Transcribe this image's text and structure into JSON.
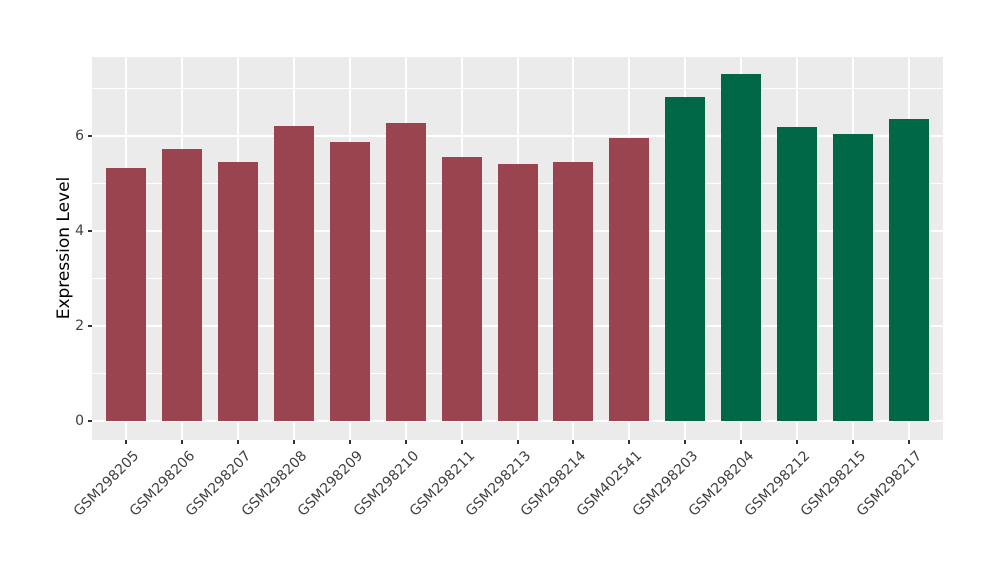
{
  "chart_data": {
    "type": "bar",
    "title": "",
    "xlabel": "",
    "ylabel": "Expression Level",
    "categories": [
      "GSM298205",
      "GSM298206",
      "GSM298207",
      "GSM298208",
      "GSM298209",
      "GSM298210",
      "GSM298211",
      "GSM298213",
      "GSM298214",
      "GSM402541",
      "GSM298203",
      "GSM298204",
      "GSM298212",
      "GSM298215",
      "GSM298217"
    ],
    "values": [
      5.33,
      5.72,
      5.45,
      6.2,
      5.88,
      6.28,
      5.55,
      5.4,
      5.46,
      5.95,
      6.81,
      7.3,
      6.18,
      6.05,
      6.35
    ],
    "bar_colors": [
      "#9A4450",
      "#9A4450",
      "#9A4450",
      "#9A4450",
      "#9A4450",
      "#9A4450",
      "#9A4450",
      "#9A4450",
      "#9A4450",
      "#9A4450",
      "#006747",
      "#006747",
      "#006747",
      "#006747",
      "#006747"
    ],
    "group_colors": {
      "maroon_group": "#9A4450",
      "green_group": "#006747"
    },
    "yticks": [
      0,
      2,
      4,
      6
    ],
    "minor_gridlines": [
      1,
      3,
      5,
      7
    ],
    "ylim": [
      -0.4,
      7.66
    ],
    "grid": "on",
    "legend": "none",
    "panel_bg": "#EBEBEB",
    "grid_color": "#FFFFFF",
    "axis_text_color": "#404040",
    "tick_mark_color": "#333333"
  }
}
